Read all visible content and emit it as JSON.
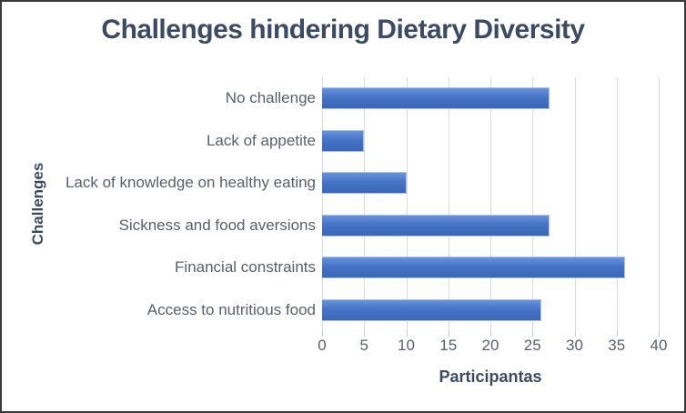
{
  "chart_data": {
    "type": "bar",
    "orientation": "horizontal",
    "title": "Challenges hindering Dietary Diversity",
    "xlabel": "Participantas",
    "ylabel": "Challenges",
    "categories": [
      "No challenge",
      "Lack of appetite",
      "Lack of knowledge on healthy eating",
      "Sickness and food aversions",
      "Financial constraints",
      "Access to nutritious food"
    ],
    "values": [
      27,
      5,
      10,
      27,
      36,
      26
    ],
    "xlim": [
      0,
      40
    ],
    "xticks": [
      0,
      5,
      10,
      15,
      20,
      25,
      30,
      35,
      40
    ],
    "grid": true,
    "legend": "none",
    "bar_color": "#4472C4",
    "colors": {
      "title_text": "#3c4b63",
      "axis_label_text": "#3c4b63",
      "tick_text": "#57606c",
      "gridline": "#d8dbde",
      "frame_border": "#3a3a3a",
      "background": "#ffffff"
    }
  }
}
